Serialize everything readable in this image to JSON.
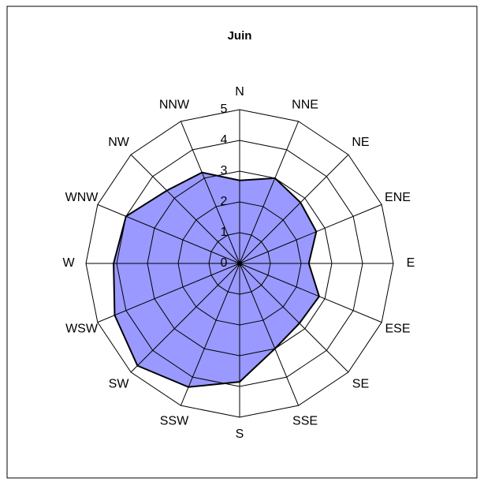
{
  "chart_data": {
    "type": "radar",
    "title": "Juin",
    "categories": [
      "N",
      "NNE",
      "NE",
      "ENE",
      "E",
      "ESE",
      "SE",
      "SSE",
      "S",
      "SSW",
      "SW",
      "WSW",
      "W",
      "WNW",
      "NW",
      "NNW"
    ],
    "values": [
      2.7,
      3.0,
      2.8,
      2.7,
      2.25,
      2.8,
      2.75,
      3.0,
      3.85,
      4.35,
      4.7,
      4.4,
      4.1,
      4.0,
      3.35,
      3.2
    ],
    "color": "#9999ff",
    "ylim": [
      0,
      5
    ],
    "yticks": [
      0,
      1,
      2,
      3,
      4,
      5
    ],
    "grid": true
  }
}
